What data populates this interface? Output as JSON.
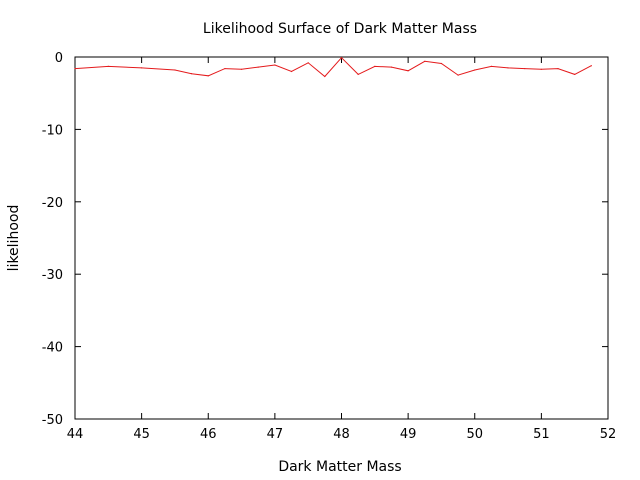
{
  "chart_data": {
    "type": "line",
    "title": "Likelihood Surface of Dark Matter Mass",
    "xlabel": "Dark Matter Mass",
    "ylabel": "likelihood",
    "xlim": [
      44,
      52
    ],
    "ylim": [
      -50,
      0
    ],
    "x_ticks": [
      44,
      45,
      46,
      47,
      48,
      49,
      50,
      51,
      52
    ],
    "y_ticks": [
      0,
      -10,
      -20,
      -30,
      -40,
      -50
    ],
    "grid": false,
    "line_color": "#e41a1c",
    "series": [
      {
        "x": [
          44.0,
          44.5,
          45.0,
          45.5,
          45.75,
          46.0,
          46.25,
          46.5,
          46.75,
          47.0,
          47.25,
          47.5,
          47.75,
          48.0,
          48.25,
          48.5,
          48.75,
          49.0,
          49.25,
          49.5,
          49.75,
          50.0,
          50.25,
          50.5,
          50.75,
          51.0,
          51.25,
          51.5,
          51.75
        ],
        "values": [
          -1.6,
          -1.3,
          -1.5,
          -1.8,
          -2.3,
          -2.6,
          -1.6,
          -1.7,
          -1.4,
          -1.1,
          -2.0,
          -0.8,
          -2.7,
          -0.1,
          -2.4,
          -1.3,
          -1.4,
          -1.9,
          -0.6,
          -0.9,
          -2.5,
          -1.8,
          -1.3,
          -1.5,
          -1.6,
          -1.7,
          -1.6,
          -2.4,
          -1.2
        ]
      }
    ]
  }
}
